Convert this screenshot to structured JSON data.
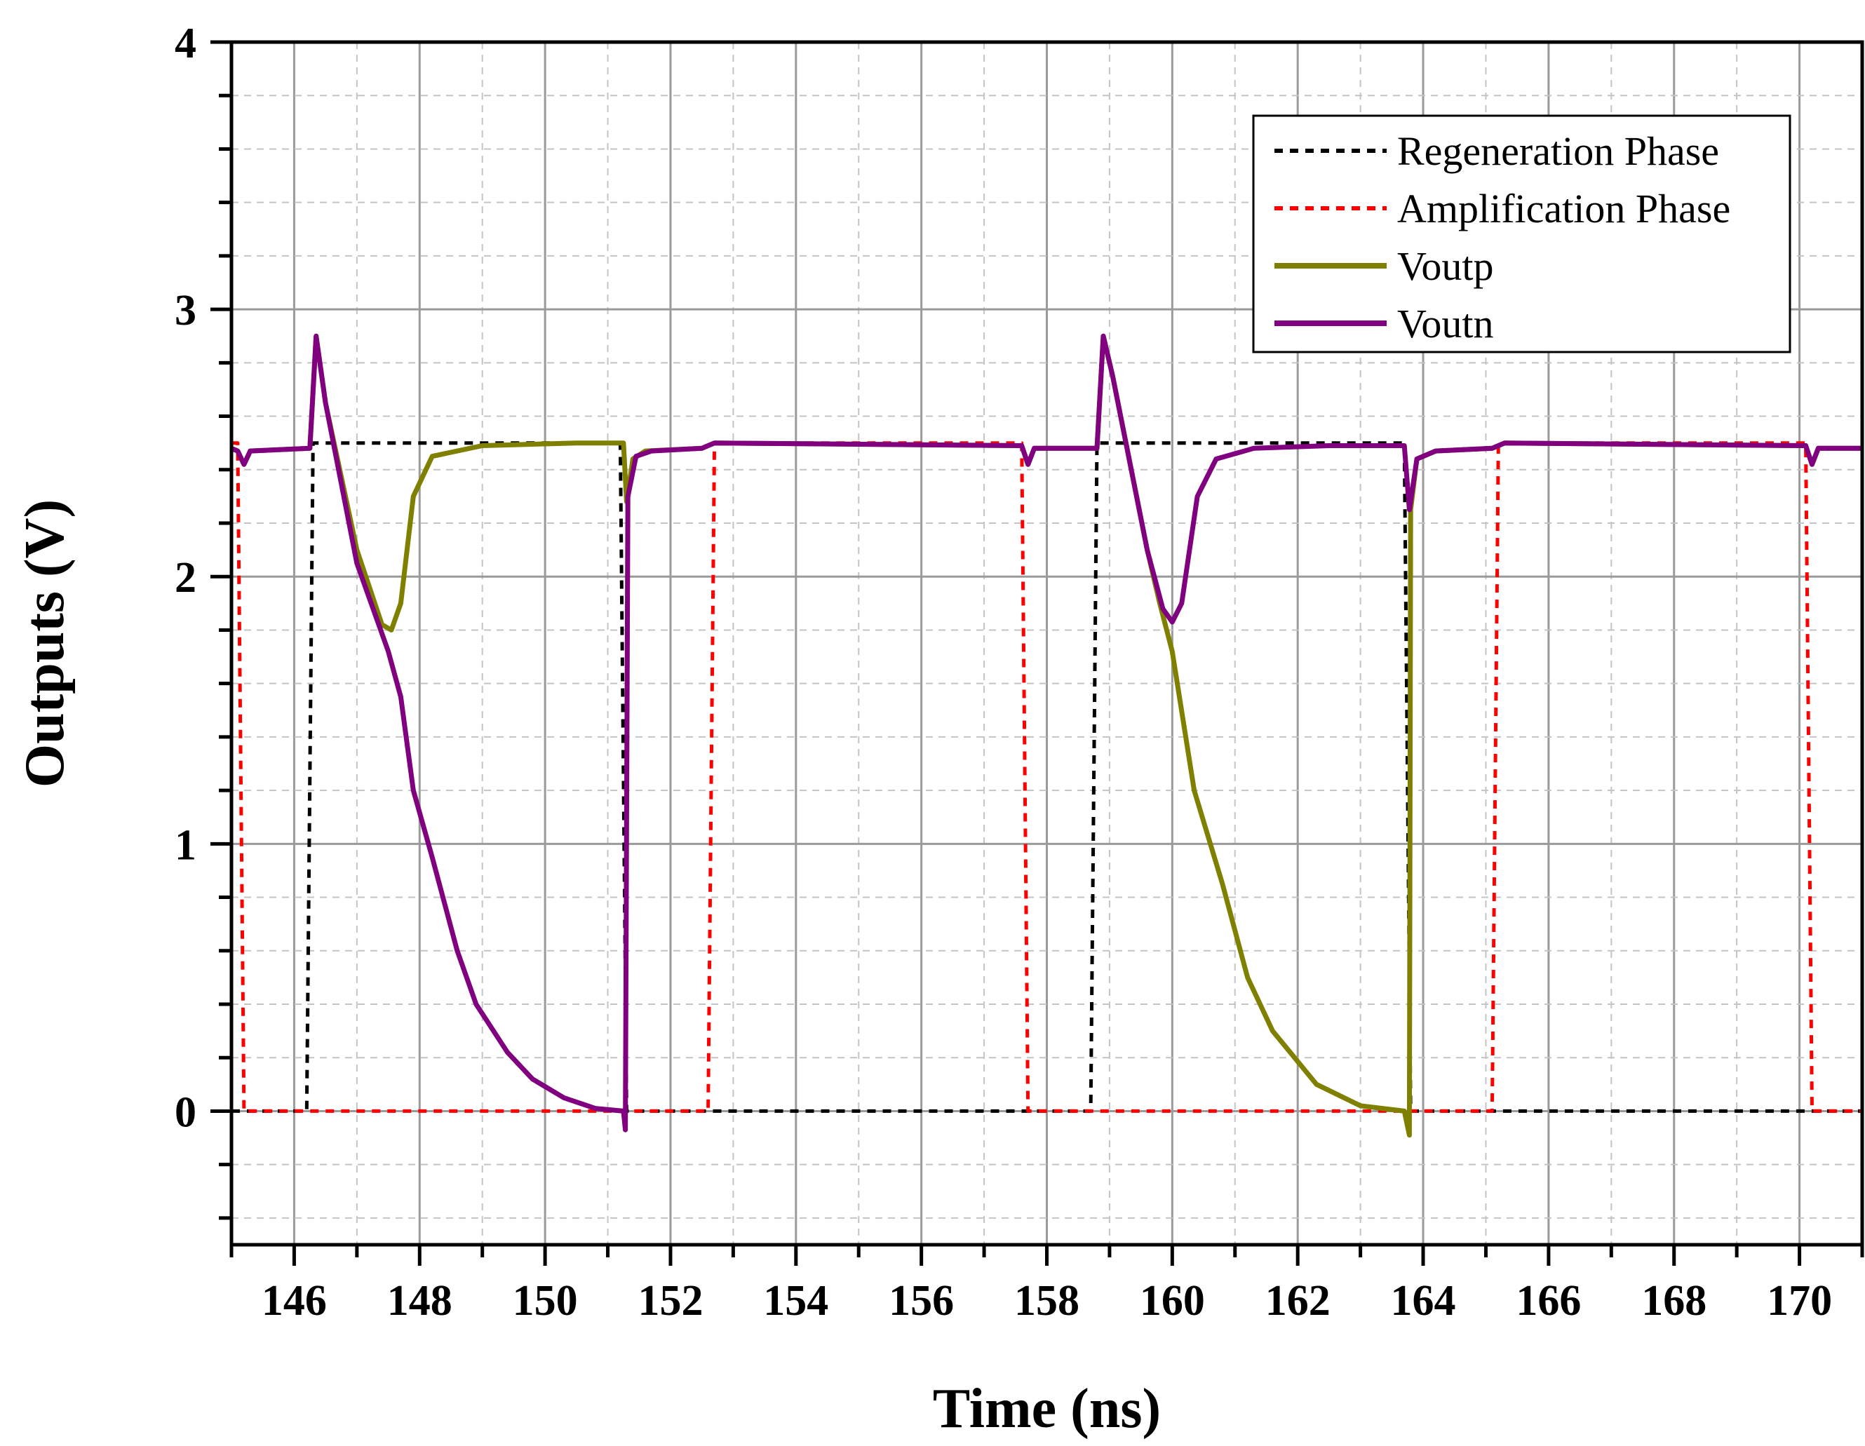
{
  "chart_data": {
    "type": "line",
    "xlabel": "Time (ns)",
    "ylabel": "Outputs (V)",
    "xlim": [
      145,
      171
    ],
    "ylim": [
      -0.5,
      4
    ],
    "xticks": [
      146,
      148,
      150,
      152,
      154,
      156,
      158,
      160,
      162,
      164,
      166,
      168,
      170
    ],
    "yticks": [
      0,
      1,
      2,
      3,
      4
    ],
    "grid": true,
    "legend_position": "top-right",
    "series": [
      {
        "name": "Regeneration Phase",
        "color": "#000000",
        "style": "dotted",
        "points": [
          [
            145,
            0
          ],
          [
            146.2,
            0
          ],
          [
            146.3,
            2.5
          ],
          [
            151.2,
            2.5
          ],
          [
            151.3,
            0
          ],
          [
            158.7,
            0
          ],
          [
            158.8,
            2.5
          ],
          [
            163.7,
            2.5
          ],
          [
            163.8,
            0
          ],
          [
            171,
            0
          ]
        ]
      },
      {
        "name": "Amplification Phase",
        "color": "#ff0000",
        "style": "dotted",
        "points": [
          [
            145,
            2.5
          ],
          [
            145.1,
            2.5
          ],
          [
            145.2,
            0
          ],
          [
            152.6,
            0
          ],
          [
            152.7,
            2.5
          ],
          [
            157.6,
            2.5
          ],
          [
            157.7,
            0
          ],
          [
            165.1,
            0
          ],
          [
            165.2,
            2.5
          ],
          [
            170.1,
            2.5
          ],
          [
            170.2,
            0
          ],
          [
            171,
            0
          ]
        ]
      },
      {
        "name": "Voutp",
        "color": "#808000",
        "style": "solid",
        "points": [
          [
            145,
            2.48
          ],
          [
            145.1,
            2.47
          ],
          [
            145.2,
            2.42
          ],
          [
            145.3,
            2.47
          ],
          [
            146.25,
            2.48
          ],
          [
            146.35,
            2.9
          ],
          [
            146.5,
            2.65
          ],
          [
            147.0,
            2.1
          ],
          [
            147.4,
            1.82
          ],
          [
            147.55,
            1.8
          ],
          [
            147.7,
            1.9
          ],
          [
            147.9,
            2.3
          ],
          [
            148.2,
            2.45
          ],
          [
            149.0,
            2.49
          ],
          [
            150.5,
            2.5
          ],
          [
            151.25,
            2.5
          ],
          [
            151.3,
            2.28
          ],
          [
            151.4,
            2.44
          ],
          [
            151.6,
            2.47
          ],
          [
            152.5,
            2.48
          ],
          [
            152.7,
            2.5
          ],
          [
            157.6,
            2.49
          ],
          [
            157.7,
            2.42
          ],
          [
            157.8,
            2.48
          ],
          [
            158.8,
            2.48
          ],
          [
            158.9,
            2.9
          ],
          [
            159.05,
            2.75
          ],
          [
            159.6,
            2.1
          ],
          [
            159.8,
            1.9
          ],
          [
            160.0,
            1.72
          ],
          [
            160.35,
            1.2
          ],
          [
            160.8,
            0.85
          ],
          [
            161.2,
            0.5
          ],
          [
            161.6,
            0.3
          ],
          [
            162.3,
            0.1
          ],
          [
            163.0,
            0.02
          ],
          [
            163.7,
            0.0
          ],
          [
            163.78,
            -0.09
          ],
          [
            163.8,
            2.25
          ],
          [
            163.9,
            2.44
          ],
          [
            164.2,
            2.47
          ],
          [
            165.1,
            2.48
          ],
          [
            165.3,
            2.5
          ],
          [
            170.1,
            2.49
          ],
          [
            170.2,
            2.42
          ],
          [
            170.3,
            2.48
          ],
          [
            171,
            2.48
          ]
        ]
      },
      {
        "name": "Voutn",
        "color": "#800080",
        "style": "solid",
        "points": [
          [
            145,
            2.48
          ],
          [
            145.1,
            2.47
          ],
          [
            145.2,
            2.42
          ],
          [
            145.3,
            2.47
          ],
          [
            146.25,
            2.48
          ],
          [
            146.35,
            2.9
          ],
          [
            146.5,
            2.65
          ],
          [
            147.0,
            2.05
          ],
          [
            147.5,
            1.72
          ],
          [
            147.7,
            1.55
          ],
          [
            147.9,
            1.2
          ],
          [
            148.2,
            0.95
          ],
          [
            148.6,
            0.6
          ],
          [
            148.9,
            0.4
          ],
          [
            149.4,
            0.22
          ],
          [
            149.8,
            0.12
          ],
          [
            150.3,
            0.05
          ],
          [
            150.8,
            0.01
          ],
          [
            151.25,
            0.0
          ],
          [
            151.28,
            -0.07
          ],
          [
            151.32,
            2.3
          ],
          [
            151.45,
            2.45
          ],
          [
            151.7,
            2.47
          ],
          [
            152.5,
            2.48
          ],
          [
            152.7,
            2.5
          ],
          [
            157.6,
            2.49
          ],
          [
            157.7,
            2.42
          ],
          [
            157.8,
            2.48
          ],
          [
            158.8,
            2.48
          ],
          [
            158.9,
            2.9
          ],
          [
            159.05,
            2.75
          ],
          [
            159.6,
            2.1
          ],
          [
            159.85,
            1.88
          ],
          [
            160.0,
            1.83
          ],
          [
            160.15,
            1.9
          ],
          [
            160.4,
            2.3
          ],
          [
            160.7,
            2.44
          ],
          [
            161.3,
            2.48
          ],
          [
            162.5,
            2.49
          ],
          [
            163.7,
            2.49
          ],
          [
            163.78,
            2.25
          ],
          [
            163.9,
            2.44
          ],
          [
            164.2,
            2.47
          ],
          [
            165.1,
            2.48
          ],
          [
            165.3,
            2.5
          ],
          [
            170.1,
            2.49
          ],
          [
            170.2,
            2.42
          ],
          [
            170.3,
            2.48
          ],
          [
            171,
            2.48
          ]
        ]
      }
    ]
  }
}
